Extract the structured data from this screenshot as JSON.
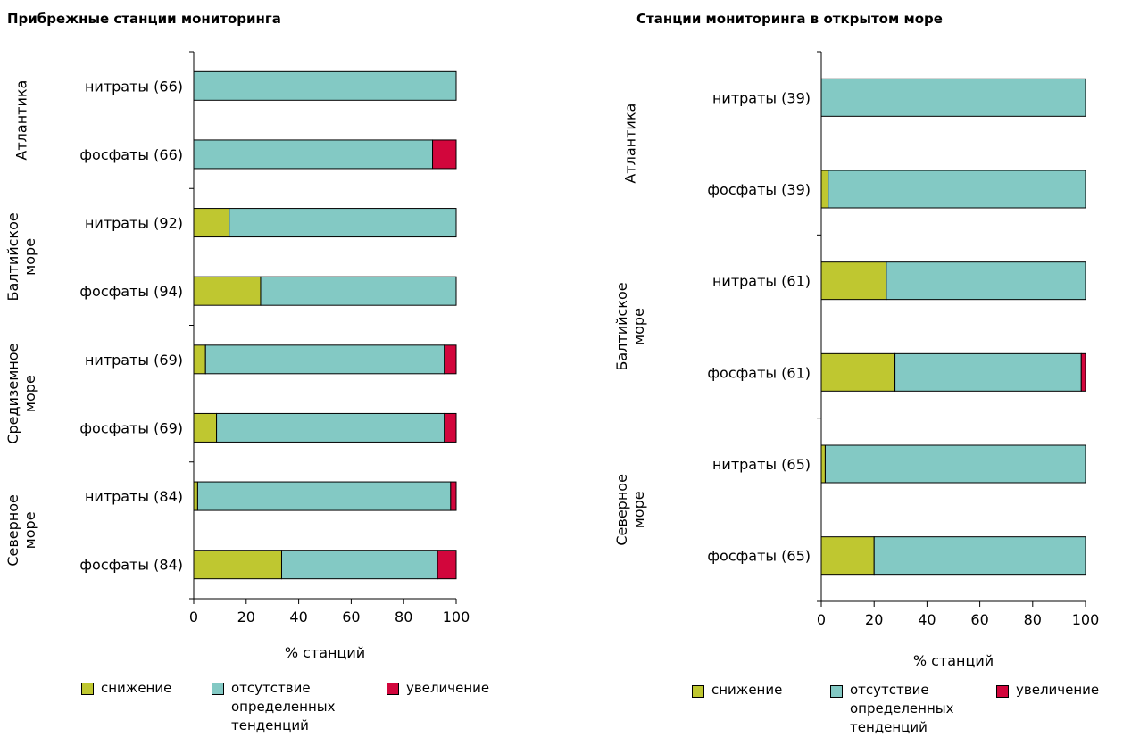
{
  "colors": {
    "decrease": "#bfc730",
    "none": "#83c9c4",
    "increase": "#d2063c",
    "axis": "#000000"
  },
  "legend": {
    "decrease": "снижение",
    "none": "отсутствие\nопределенных\nтенденций",
    "increase": "увеличение"
  },
  "chart_data": [
    {
      "type": "bar",
      "orientation": "horizontal",
      "stacked": true,
      "title": "Прибрежные станции мониторинга",
      "xlabel": "% станций",
      "xlim": [
        0,
        100
      ],
      "xticks": [
        "0",
        "20",
        "40",
        "60",
        "80",
        "100"
      ],
      "legend_position": "bottom",
      "groups": [
        {
          "name": "Атлантика",
          "lines": [
            "Атлантика"
          ]
        },
        {
          "name": "Балтийское море",
          "lines": [
            "Балтийское",
            "море"
          ]
        },
        {
          "name": "Средиземное море",
          "lines": [
            "Средиземное",
            "море"
          ]
        },
        {
          "name": "Северное море",
          "lines": [
            "Северное",
            "море"
          ]
        }
      ],
      "categories": [
        "нитраты (66)",
        "фосфаты (66)",
        "нитраты (92)",
        "фосфаты (94)",
        "нитраты (69)",
        "фосфаты (69)",
        "нитраты (84)",
        "фосфаты (84)"
      ],
      "series": [
        {
          "name": "снижение",
          "values": [
            0,
            0,
            13.5,
            25.5,
            4.5,
            8.7,
            1.5,
            33.5
          ]
        },
        {
          "name": "отсутствие определенных тенденций",
          "values": [
            100,
            91,
            86.5,
            74.5,
            91,
            86.8,
            96.4,
            59.4
          ]
        },
        {
          "name": "увеличение",
          "values": [
            0,
            9,
            0,
            0,
            4.5,
            4.5,
            2.1,
            7.1
          ]
        }
      ]
    },
    {
      "type": "bar",
      "orientation": "horizontal",
      "stacked": true,
      "title": "Станции мониторинга в открытом море",
      "xlabel": "% станций",
      "xlim": [
        0,
        100
      ],
      "xticks": [
        "0",
        "20",
        "40",
        "60",
        "80",
        "100"
      ],
      "legend_position": "bottom",
      "groups": [
        {
          "name": "Атлантика",
          "lines": [
            "Атлантика"
          ]
        },
        {
          "name": "Балтийское море",
          "lines": [
            "Балтийское",
            "море"
          ]
        },
        {
          "name": "Северное море",
          "lines": [
            "Северное",
            "море"
          ]
        }
      ],
      "categories": [
        "нитраты (39)",
        "фосфаты (39)",
        "нитраты (61)",
        "фосфаты (61)",
        "нитраты (65)",
        "фосфаты (65)"
      ],
      "series": [
        {
          "name": "снижение",
          "values": [
            0,
            2.6,
            24.6,
            27.9,
            1.5,
            20
          ]
        },
        {
          "name": "отсутствие определенных тенденций",
          "values": [
            100,
            97.4,
            75.4,
            70.5,
            98.5,
            80
          ]
        },
        {
          "name": "увеличение",
          "values": [
            0,
            0,
            0,
            1.6,
            0,
            0
          ]
        }
      ]
    }
  ]
}
